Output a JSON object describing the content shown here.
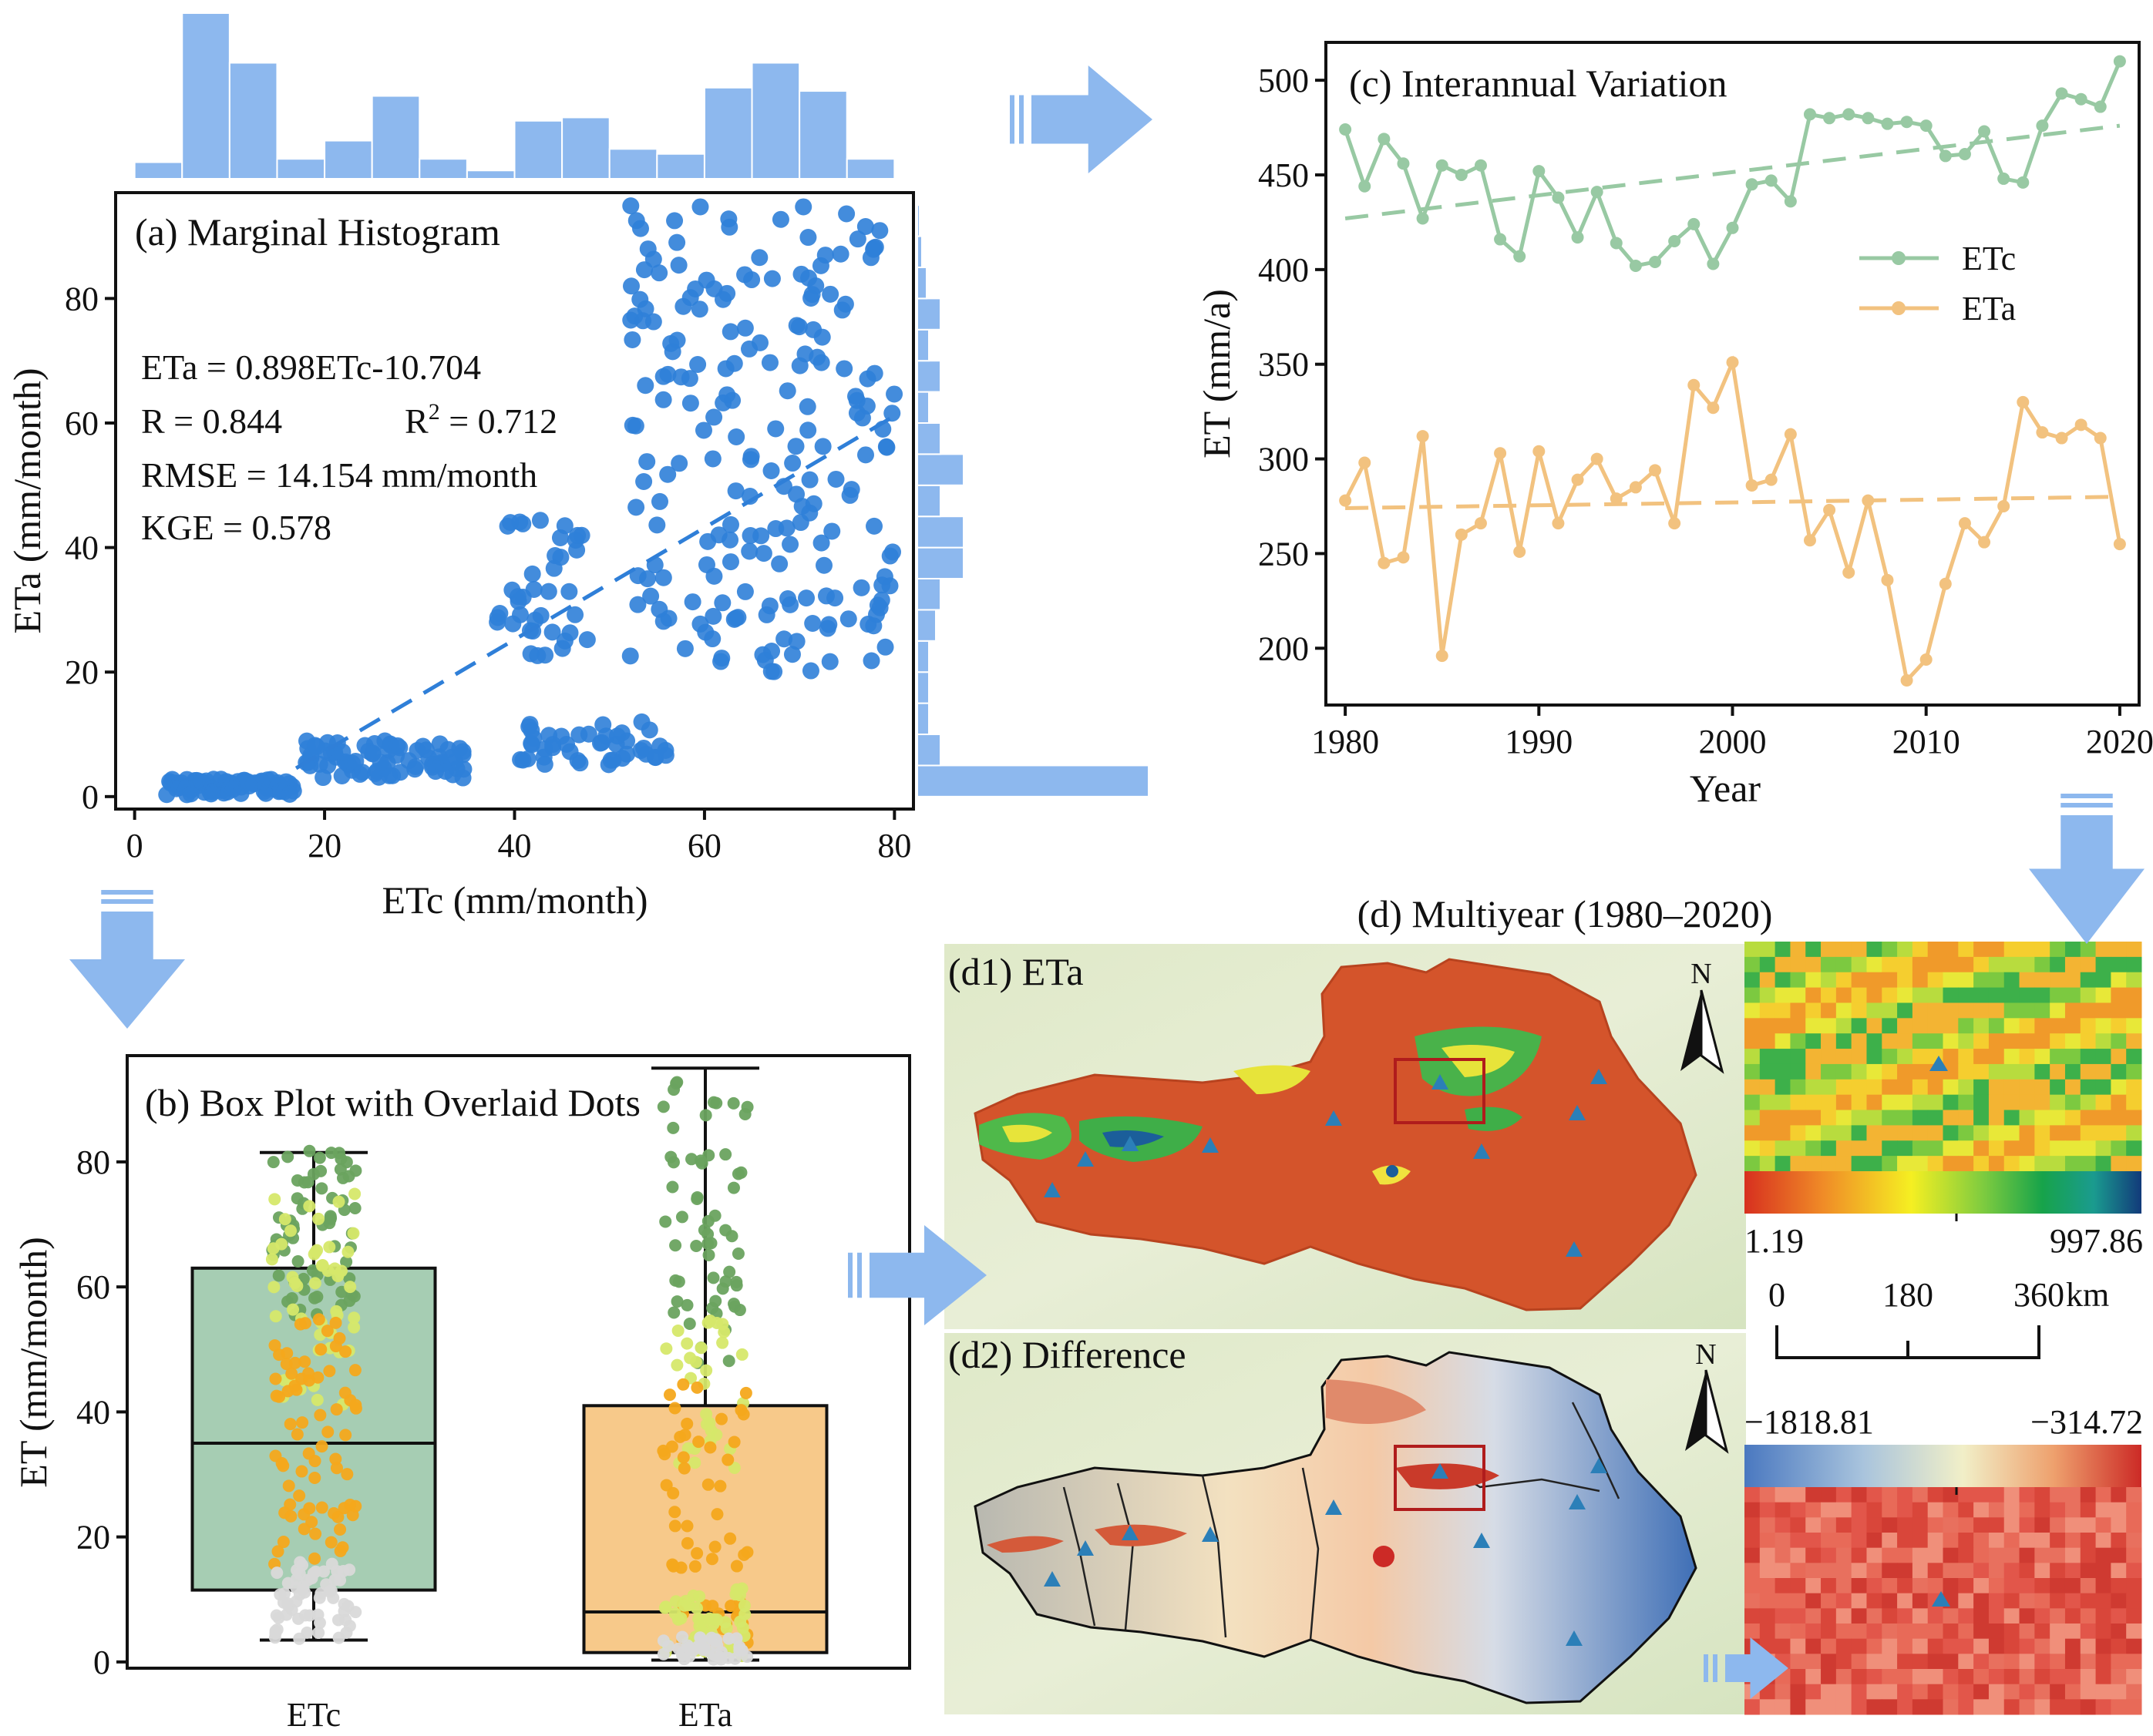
{
  "panels": {
    "a": {
      "title": "(a) Marginal Histogram",
      "xlabel": "ETc (mm/month)",
      "ylabel": "ETa (mm/month)",
      "xticks": [
        "0",
        "20",
        "40",
        "60",
        "80"
      ],
      "yticks": [
        "0",
        "20",
        "40",
        "60",
        "80"
      ],
      "stats": {
        "equation": "ETa = 0.898ETc-10.704",
        "r": "R = 0.844",
        "r2_prefix": "R",
        "r2_sup": "2",
        "r2_value": " = 0.712",
        "rmse": "RMSE = 14.154 mm/month",
        "kge": "KGE = 0.578"
      }
    },
    "b": {
      "title": "(b) Box Plot with Overlaid Dots",
      "ylabel": "ET (mm/month)",
      "yticks": [
        "0",
        "20",
        "40",
        "60",
        "80"
      ],
      "categories": [
        "ETc",
        "ETa"
      ]
    },
    "c": {
      "title": "(c) Interannual Variation",
      "xlabel": "Year",
      "ylabel": "ET (mm/a)",
      "xticks": [
        "1980",
        "1990",
        "2000",
        "2010",
        "2020"
      ],
      "yticks": [
        "200",
        "250",
        "300",
        "350",
        "400",
        "450",
        "500"
      ],
      "legend": [
        "ETc",
        "ETa"
      ]
    },
    "d": {
      "title": "(d) Multiyear (1980–2020)",
      "d1_label": "(d1) ETa",
      "d2_label": "(d2) Difference",
      "north": "N",
      "cbar1_min": "1.19",
      "cbar1_max": "997.86",
      "cbar2_min": "−1818.81",
      "cbar2_max": "−314.72",
      "scale_labels": [
        "0",
        "180",
        "360"
      ],
      "scale_unit": "km"
    }
  },
  "colors": {
    "scatter": "#2f7fd8",
    "hist": "#8db8ee",
    "arrow": "#8db8ee",
    "etc_line": "#98c9a3",
    "eta_line": "#f2c27f",
    "box_etc": "#a6cdb3",
    "box_eta": "#f7c98a",
    "dot_green": "#6aa35f",
    "dot_yellow": "#d6e86a",
    "dot_orange": "#f4a81c",
    "dot_grey": "#d9d9d9",
    "map_red": "#d4542b",
    "roi": "#b01c1c"
  },
  "chart_data": [
    {
      "type": "scatter",
      "id": "a",
      "xlim": [
        -2,
        82
      ],
      "ylim": [
        -2,
        97
      ],
      "fit": {
        "slope": 0.898,
        "intercept": -10.704,
        "x_range": [
          17,
          80
        ]
      },
      "x_hist": {
        "bin_edges": [
          0,
          5,
          10,
          15,
          20,
          25,
          30,
          35,
          40,
          45,
          50,
          55,
          60,
          65,
          70,
          75,
          80
        ],
        "counts": [
          1,
          10,
          7,
          1.2,
          2.3,
          5,
          1.2,
          0.5,
          3.5,
          3.7,
          1.8,
          1.5,
          5.5,
          7,
          5.3,
          1.2
        ]
      },
      "y_hist": {
        "bin_edges": [
          0,
          5,
          10,
          15,
          20,
          25,
          30,
          35,
          40,
          45,
          50,
          55,
          60,
          65,
          70,
          75,
          80,
          85,
          90,
          95
        ],
        "counts": [
          10,
          1,
          0.5,
          0.5,
          0.5,
          0.8,
          1,
          2,
          2,
          1,
          2,
          1,
          0.5,
          1,
          0.5,
          1,
          0.4,
          0.2,
          0.1
        ]
      },
      "clusters": [
        {
          "x": [
            3,
            17
          ],
          "y": [
            0.3,
            2.8
          ],
          "n": 70
        },
        {
          "x": [
            18,
            35
          ],
          "y": [
            3,
            9
          ],
          "n": 75
        },
        {
          "x": [
            38,
            48
          ],
          "y": [
            22,
            45
          ],
          "n": 40
        },
        {
          "x": [
            40,
            56
          ],
          "y": [
            5,
            12
          ],
          "n": 45
        },
        {
          "x": [
            52,
            80
          ],
          "y": [
            20,
            95
          ],
          "n": 210
        }
      ]
    },
    {
      "type": "box",
      "id": "b",
      "ylim": [
        -1,
        97
      ],
      "boxes": [
        {
          "name": "ETc",
          "whisker_low": 3.5,
          "q1": 11.5,
          "median": 35,
          "q3": 63,
          "whisker_high": 81.5
        },
        {
          "name": "ETa",
          "whisker_low": 0.3,
          "q1": 1.5,
          "median": 8,
          "q3": 41,
          "whisker_high": 95
        }
      ]
    },
    {
      "type": "line",
      "id": "c",
      "xlim": [
        1979,
        2021
      ],
      "ylim": [
        170,
        520
      ],
      "x": [
        1980,
        1981,
        1982,
        1983,
        1984,
        1985,
        1986,
        1987,
        1988,
        1989,
        1990,
        1991,
        1992,
        1993,
        1994,
        1995,
        1996,
        1997,
        1998,
        1999,
        2000,
        2001,
        2002,
        2003,
        2004,
        2005,
        2006,
        2007,
        2008,
        2009,
        2010,
        2011,
        2012,
        2013,
        2014,
        2015,
        2016,
        2017,
        2018,
        2019,
        2020
      ],
      "series": [
        {
          "name": "ETc",
          "values": [
            474,
            444,
            469,
            456,
            427,
            455,
            450,
            455,
            416,
            407,
            452,
            438,
            417,
            441,
            414,
            402,
            404,
            415,
            424,
            403,
            422,
            445,
            447,
            436,
            482,
            480,
            482,
            480,
            477,
            478,
            476,
            460,
            461,
            473,
            448,
            446,
            476,
            493,
            490,
            486,
            510
          ],
          "trend": [
            427,
            476
          ]
        },
        {
          "name": "ETa",
          "values": [
            278,
            298,
            245,
            248,
            312,
            196,
            260,
            266,
            303,
            251,
            304,
            266,
            289,
            300,
            279,
            285,
            294,
            266,
            339,
            327,
            351,
            286,
            289,
            313,
            257,
            273,
            240,
            278,
            236,
            183,
            194,
            234,
            266,
            256,
            275,
            330,
            314,
            311,
            318,
            311,
            255
          ],
          "trend": [
            274,
            280
          ]
        }
      ]
    }
  ]
}
